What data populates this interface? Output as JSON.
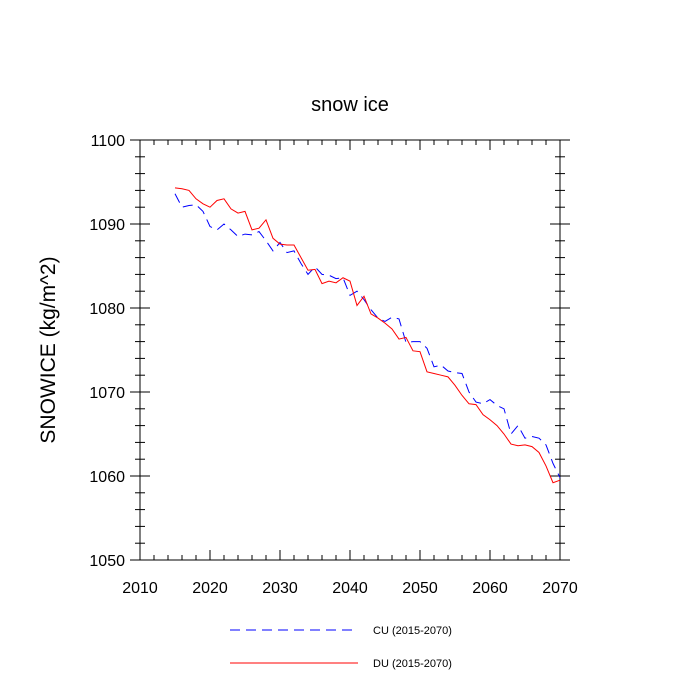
{
  "chart_data": {
    "type": "line",
    "title": "snow ice",
    "xlabel": "",
    "ylabel": "SNOWICE  (kg/m^2)",
    "xlim": [
      2010,
      2070
    ],
    "ylim": [
      1050,
      1100
    ],
    "xticks": [
      2010,
      2020,
      2030,
      2040,
      2050,
      2060,
      2070
    ],
    "yticks": [
      1050,
      1060,
      1070,
      1080,
      1090,
      1100
    ],
    "grid": false,
    "legend_position": "bottom",
    "x": [
      2015,
      2016,
      2017,
      2018,
      2019,
      2020,
      2021,
      2022,
      2023,
      2024,
      2025,
      2026,
      2027,
      2028,
      2029,
      2030,
      2031,
      2032,
      2033,
      2034,
      2035,
      2036,
      2037,
      2038,
      2039,
      2040,
      2041,
      2042,
      2043,
      2044,
      2045,
      2046,
      2047,
      2048,
      2049,
      2050,
      2051,
      2052,
      2053,
      2054,
      2055,
      2056,
      2057,
      2058,
      2059,
      2060,
      2061,
      2062,
      2063,
      2064,
      2065,
      2066,
      2067,
      2068,
      2069,
      2070
    ],
    "series": [
      {
        "name": "CU (2015-2070)",
        "color": "#0000ff",
        "dash": "dashed",
        "values": [
          1093.6,
          1092.0,
          1092.2,
          1092.3,
          1091.5,
          1089.7,
          1089.3,
          1090.0,
          1089.3,
          1088.5,
          1088.8,
          1088.7,
          1089.1,
          1088.0,
          1086.8,
          1087.8,
          1086.6,
          1086.8,
          1085.3,
          1084.0,
          1084.9,
          1084.0,
          1083.9,
          1083.5,
          1083.6,
          1081.5,
          1082.0,
          1081.0,
          1079.8,
          1078.8,
          1078.4,
          1078.9,
          1078.7,
          1075.9,
          1076.0,
          1076.0,
          1075.2,
          1073.0,
          1073.2,
          1072.5,
          1072.3,
          1072.2,
          1070.0,
          1068.8,
          1068.6,
          1069.1,
          1068.4,
          1068.0,
          1065.0,
          1066.0,
          1064.5,
          1064.7,
          1064.5,
          1063.7,
          1061.5,
          1059.8
        ]
      },
      {
        "name": "DU (2015-2070)",
        "color": "#ff0000",
        "dash": "solid",
        "values": [
          1094.3,
          1094.2,
          1094.0,
          1093.0,
          1092.4,
          1092.0,
          1092.8,
          1093.0,
          1091.8,
          1091.3,
          1091.5,
          1089.3,
          1089.5,
          1090.5,
          1088.3,
          1087.6,
          1087.5,
          1087.5,
          1086.0,
          1084.5,
          1084.6,
          1082.9,
          1083.2,
          1083.0,
          1083.6,
          1083.2,
          1080.3,
          1081.4,
          1079.3,
          1078.8,
          1078.2,
          1077.5,
          1076.3,
          1076.5,
          1074.9,
          1074.8,
          1072.4,
          1072.2,
          1072.0,
          1071.8,
          1070.8,
          1069.6,
          1068.6,
          1068.5,
          1067.3,
          1066.7,
          1066.0,
          1065.0,
          1063.8,
          1063.6,
          1063.7,
          1063.5,
          1062.8,
          1061.2,
          1059.2,
          1059.5
        ]
      }
    ]
  }
}
